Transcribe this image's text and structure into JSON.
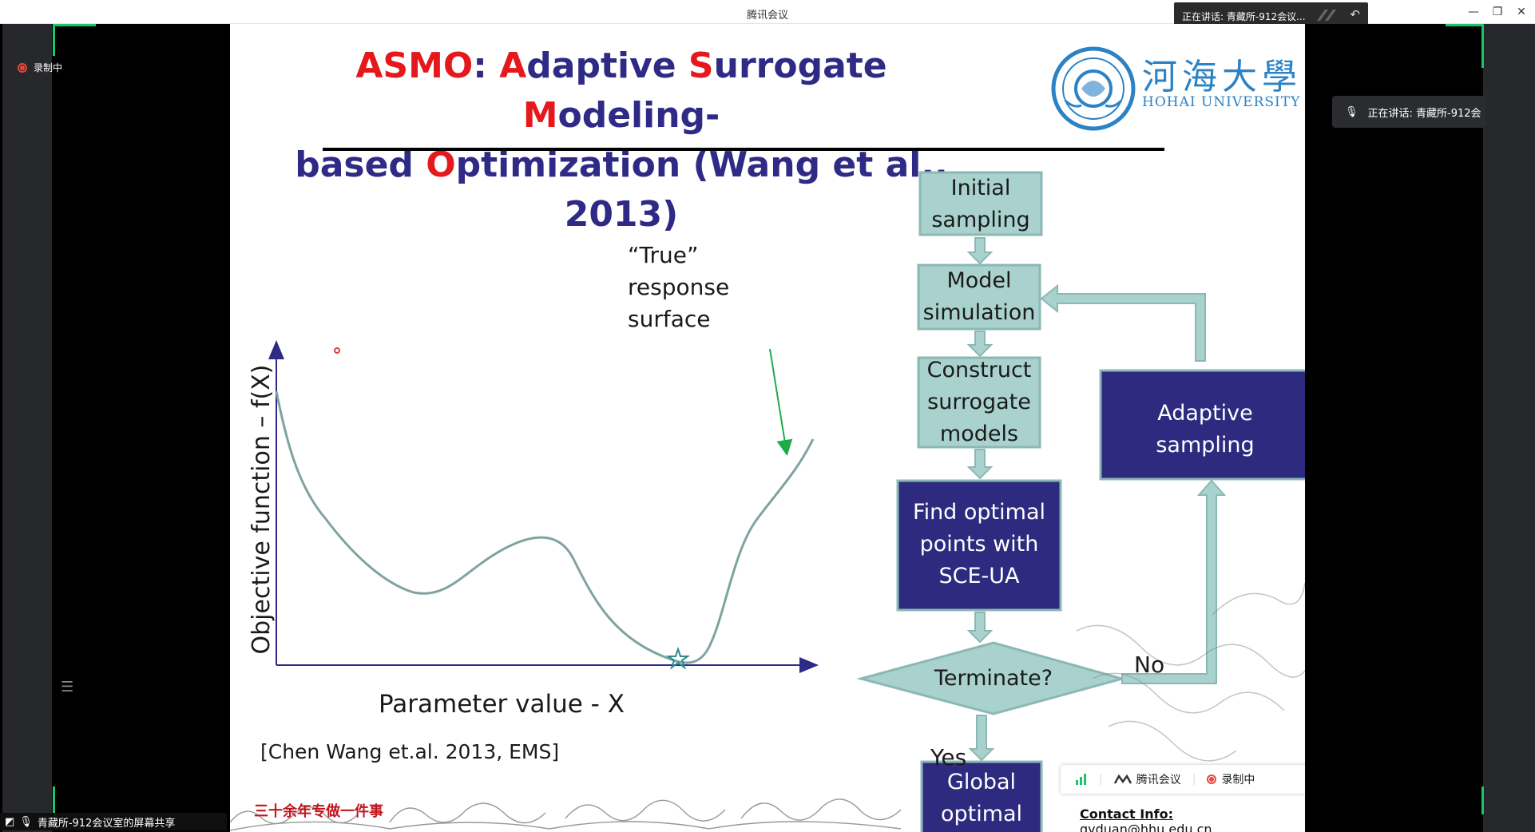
{
  "window": {
    "title": "腾讯会议",
    "speaking_banner": "正在讲话: 青藏所-912会议...",
    "minimize": "—",
    "restore": "❐",
    "close": "✕"
  },
  "left": {
    "recording_label": "录制中",
    "share_label": "青藏所-912会议室的屏幕共享"
  },
  "right": {
    "speaker_chip": "正在讲话: 青藏所-912会"
  },
  "slide": {
    "title": {
      "part1_red": "ASMO",
      "colon": ": ",
      "a_red": "A",
      "w1": "daptive ",
      "s_red": "S",
      "w2": "urrogate ",
      "m_red": "M",
      "w3": "odeling-",
      "w4": "based ",
      "o_red": "O",
      "w5": "ptimization (Wang et al., 2013)"
    },
    "logo": {
      "cn": "河海大學",
      "en": "HOHAI UNIVERSITY",
      "seal_text": "HOHAI UNIVERSITY"
    },
    "plot": {
      "annotation": [
        "“True”",
        "response",
        "surface"
      ],
      "ylabel": "Objective function – f(X)",
      "xlabel": "Parameter value - X",
      "citation": "[Chen Wang et.al. 2013, EMS]"
    },
    "flow": {
      "initial": [
        "Initial",
        "sampling"
      ],
      "model": [
        "Model",
        "simulation"
      ],
      "construct": [
        "Construct",
        "surrogate",
        "models"
      ],
      "find": [
        "Find optimal",
        "points with",
        "SCE-UA"
      ],
      "terminate": "Terminate?",
      "global": [
        "Global",
        "optimal"
      ],
      "adaptive": [
        "Adaptive",
        "sampling"
      ],
      "no": "No",
      "yes": "Yes"
    },
    "footer": {
      "slogan": "三十余年专做一件事",
      "contact_label": "Contact Info:",
      "contact_value": "qyduan@hhu.edu.cn"
    },
    "meeting_watermark": {
      "app": "腾讯会议",
      "recording": "录制中"
    }
  },
  "colors": {
    "title_blue": "#2e2a85",
    "title_red": "#e5181c",
    "light_box_fill": "#a9d2cf",
    "dark_box_fill": "#2d2a80",
    "curve": "#7fa3a1",
    "axis": "#2e2a85",
    "recording_green": "#18c76b"
  }
}
